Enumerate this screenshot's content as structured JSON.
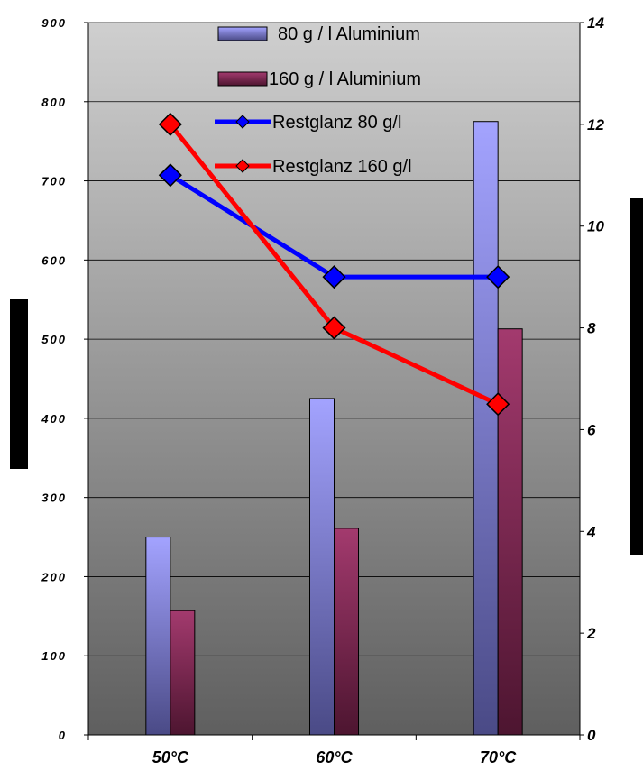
{
  "chart_data": {
    "type": "bar",
    "categories": [
      "50°C",
      "60°C",
      "70°C"
    ],
    "series": [
      {
        "name": "80 g / l Aluminium",
        "kind": "bar",
        "axis": "left",
        "values": [
          250,
          425,
          775
        ],
        "color": "#9a9aff"
      },
      {
        "name": "160 g / l Aluminium",
        "kind": "bar",
        "axis": "left",
        "values": [
          157,
          261,
          513
        ],
        "color": "#993366"
      },
      {
        "name": "Restglanz 80 g/l",
        "kind": "line",
        "axis": "right",
        "values": [
          11,
          9,
          9
        ],
        "color": "#0000ff"
      },
      {
        "name": "Restglanz 160 g/l",
        "kind": "line",
        "axis": "right",
        "values": [
          12,
          8,
          6.5
        ],
        "color": "#ff0000"
      }
    ],
    "y_left": {
      "range": [
        0,
        900
      ],
      "ticks": [
        "0",
        "100",
        "200",
        "300",
        "400",
        "500",
        "600",
        "700",
        "800",
        "900"
      ]
    },
    "y_right": {
      "range": [
        0,
        14
      ],
      "ticks": [
        "0",
        "2",
        "4",
        "6",
        "8",
        "10",
        "12",
        "14"
      ]
    },
    "grid": true,
    "legend": "top",
    "background": "gradient-grey"
  }
}
